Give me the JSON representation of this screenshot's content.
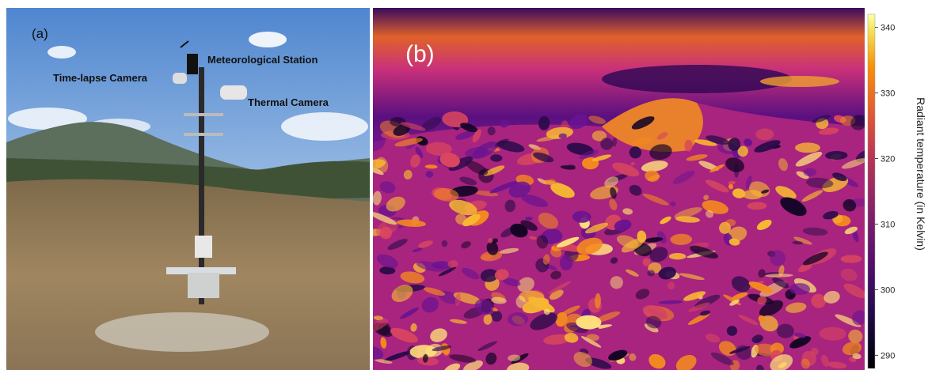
{
  "panel_a": {
    "label": "(a)",
    "annotations": [
      "Meteorological Station",
      "Time-lapse Camera",
      "Thermal Camera"
    ]
  },
  "panel_b": {
    "label": "(b)"
  },
  "colorbar": {
    "label": "Radiant temperature (in Kelvin)",
    "lim": [
      288,
      342
    ],
    "ticks": [
      290,
      300,
      310,
      320,
      330,
      340
    ]
  }
}
